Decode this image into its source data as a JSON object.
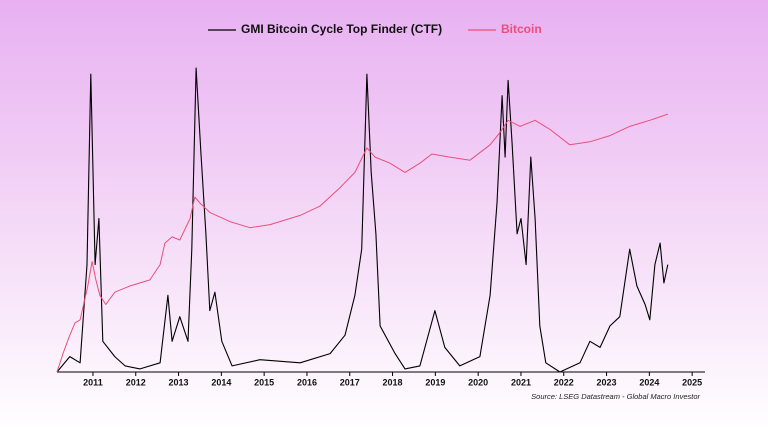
{
  "chart_data": {
    "type": "line",
    "xlim": [
      2010.16,
      2025.3
    ],
    "xticks": [
      2011,
      2012,
      2013,
      2014,
      2015,
      2016,
      2017,
      2018,
      2019,
      2020,
      2021,
      2022,
      2023,
      2024,
      2025
    ],
    "ylim": [
      0,
      100
    ],
    "source": "Source: LSEG Datastream - Global Macro Investor",
    "series": [
      {
        "name": "GMI Bitcoin Cycle Top Finder (CTF)",
        "color": "#000000",
        "x": [
          2010.16,
          2010.46,
          2010.7,
          2010.86,
          2010.95,
          2011.05,
          2011.14,
          2011.23,
          2011.51,
          2011.75,
          2012.1,
          2012.57,
          2012.75,
          2012.85,
          2013.03,
          2013.22,
          2013.31,
          2013.41,
          2013.52,
          2013.64,
          2013.73,
          2013.85,
          2014.01,
          2014.25,
          2014.9,
          2015.84,
          2016.54,
          2016.89,
          2017.12,
          2017.28,
          2017.4,
          2017.5,
          2017.61,
          2017.71,
          2018.06,
          2018.29,
          2018.64,
          2018.99,
          2019.22,
          2019.57,
          2020.04,
          2020.28,
          2020.44,
          2020.56,
          2020.63,
          2020.7,
          2020.79,
          2020.91,
          2021.0,
          2021.12,
          2021.23,
          2021.33,
          2021.44,
          2021.58,
          2021.91,
          2022.38,
          2022.61,
          2022.85,
          2023.08,
          2023.31,
          2023.54,
          2023.71,
          2023.9,
          2024.01,
          2024.13,
          2024.25,
          2024.34,
          2024.43
        ],
        "values": [
          0,
          5,
          3,
          35,
          97,
          35,
          50,
          10,
          5,
          2,
          1,
          3,
          25,
          10,
          18,
          10,
          40,
          99,
          72,
          45,
          20,
          26,
          10,
          2,
          4,
          3,
          6,
          12,
          25,
          40,
          97,
          65,
          45,
          15,
          6,
          1,
          2,
          20,
          8,
          2,
          5,
          25,
          55,
          90,
          70,
          95,
          75,
          45,
          50,
          35,
          70,
          50,
          15,
          3,
          0,
          3,
          10,
          8,
          15,
          18,
          40,
          28,
          22,
          17,
          35,
          42,
          29,
          35
        ]
      },
      {
        "name": "Bitcoin",
        "color": "#e8507a",
        "x": [
          2010.16,
          2010.3,
          2010.46,
          2010.58,
          2010.7,
          2010.88,
          2010.98,
          2011.07,
          2011.16,
          2011.3,
          2011.51,
          2011.86,
          2012.33,
          2012.57,
          2012.68,
          2012.85,
          2013.03,
          2013.27,
          2013.38,
          2013.5,
          2013.73,
          2014.2,
          2014.67,
          2015.14,
          2015.84,
          2016.3,
          2016.77,
          2017.12,
          2017.4,
          2017.59,
          2017.94,
          2018.29,
          2018.64,
          2018.92,
          2019.34,
          2019.81,
          2020.28,
          2020.51,
          2020.7,
          2020.98,
          2021.33,
          2021.68,
          2022.14,
          2022.61,
          2023.08,
          2023.54,
          2024.01,
          2024.43
        ],
        "values": [
          0,
          6,
          12,
          16,
          17,
          28,
          36,
          30,
          25,
          22,
          26,
          28,
          30,
          35,
          42,
          44,
          43,
          50,
          57,
          55,
          52,
          49,
          47,
          48,
          51,
          54,
          60,
          65,
          73,
          70,
          68,
          65,
          68,
          71,
          70,
          69,
          74,
          78,
          82,
          80,
          82,
          79,
          74,
          75,
          77,
          80,
          82,
          84
        ]
      }
    ]
  }
}
